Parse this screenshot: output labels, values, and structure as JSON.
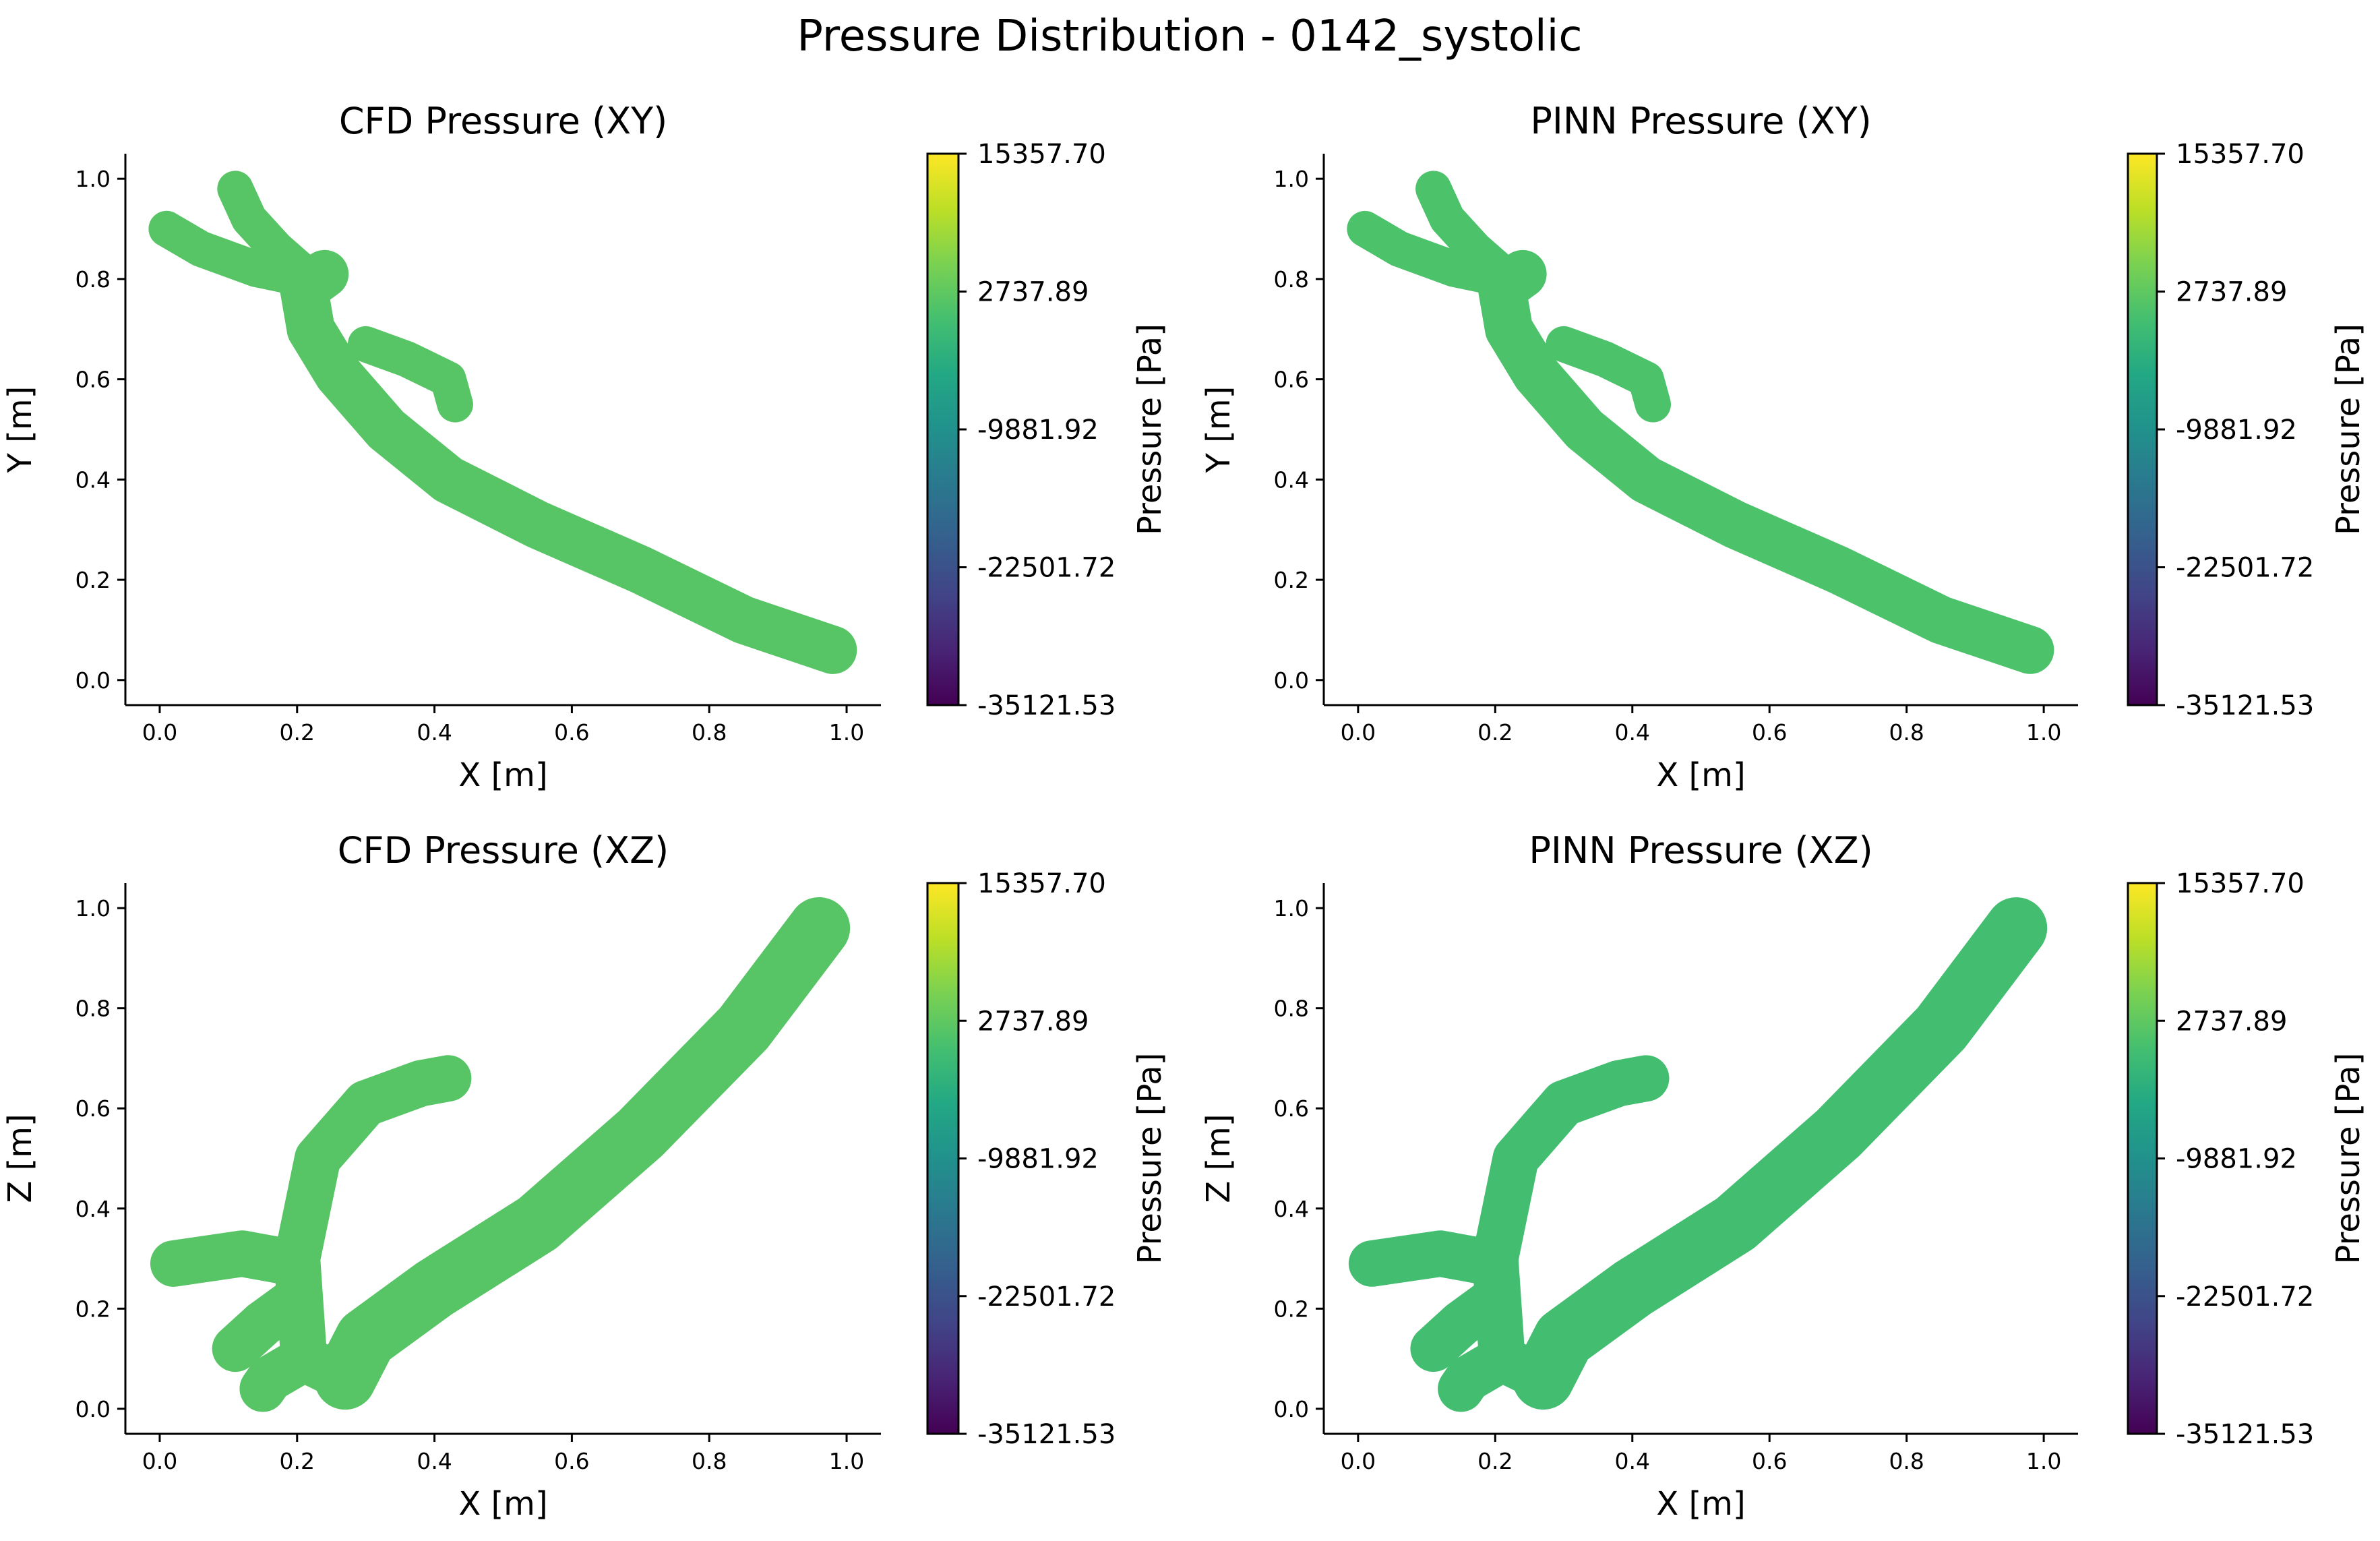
{
  "figure": {
    "title": "Pressure Distribution - 0142_systolic"
  },
  "colorbar": {
    "label": "Pressure [Pa]",
    "ticks": [
      "15357.70",
      "2737.89",
      "-9881.92",
      "-22501.72",
      "-35121.53"
    ],
    "min": -35121.53,
    "max": 15357.7,
    "colormap": "viridis",
    "colors": [
      "#440154",
      "#3b528b",
      "#21918c",
      "#5ec962",
      "#fde725"
    ]
  },
  "chart_data": [
    {
      "type": "scatter",
      "title": "CFD Pressure (XY)",
      "xlabel": "X [m]",
      "ylabel": "Y [m]",
      "xlim": [
        -0.05,
        1.05
      ],
      "ylim": [
        -0.05,
        1.05
      ],
      "xticks": [
        "0.0",
        "0.2",
        "0.4",
        "0.6",
        "0.8",
        "1.0"
      ],
      "yticks": [
        "0.0",
        "0.2",
        "0.4",
        "0.6",
        "0.8",
        "1.0"
      ],
      "value_range": [
        -35121.53,
        15357.7
      ],
      "pressure_approx": 2000,
      "grid": false
    },
    {
      "type": "scatter",
      "title": "PINN Pressure (XY)",
      "xlabel": "X [m]",
      "ylabel": "Y [m]",
      "xlim": [
        -0.05,
        1.05
      ],
      "ylim": [
        -0.05,
        1.05
      ],
      "xticks": [
        "0.0",
        "0.2",
        "0.4",
        "0.6",
        "0.8",
        "1.0"
      ],
      "yticks": [
        "0.0",
        "0.2",
        "0.4",
        "0.6",
        "0.8",
        "1.0"
      ],
      "value_range": [
        -35121.53,
        15357.7
      ],
      "pressure_approx": 1000,
      "grid": false
    },
    {
      "type": "scatter",
      "title": "CFD Pressure (XZ)",
      "xlabel": "X [m]",
      "ylabel": "Z [m]",
      "xlim": [
        -0.05,
        1.05
      ],
      "ylim": [
        -0.05,
        1.05
      ],
      "xticks": [
        "0.0",
        "0.2",
        "0.4",
        "0.6",
        "0.8",
        "1.0"
      ],
      "yticks": [
        "0.0",
        "0.2",
        "0.4",
        "0.6",
        "0.8",
        "1.0"
      ],
      "value_range": [
        -35121.53,
        15357.7
      ],
      "pressure_approx": 2000,
      "grid": false
    },
    {
      "type": "scatter",
      "title": "PINN Pressure (XZ)",
      "xlabel": "X [m]",
      "ylabel": "Z [m]",
      "xlim": [
        -0.05,
        1.05
      ],
      "ylim": [
        -0.05,
        1.05
      ],
      "xticks": [
        "0.0",
        "0.2",
        "0.4",
        "0.6",
        "0.8",
        "1.0"
      ],
      "yticks": [
        "0.0",
        "0.2",
        "0.4",
        "0.6",
        "0.8",
        "1.0"
      ],
      "value_range": [
        -35121.53,
        15357.7
      ],
      "pressure_approx": 0,
      "grid": false
    }
  ]
}
